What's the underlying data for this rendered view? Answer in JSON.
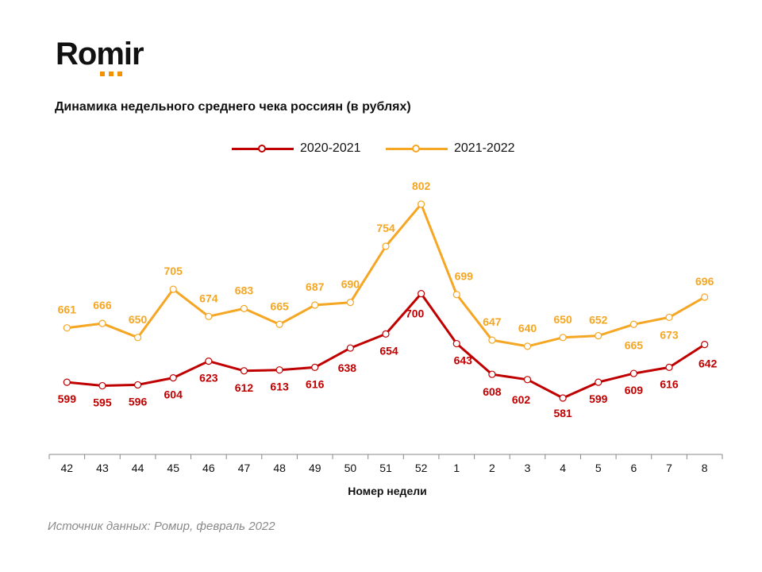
{
  "brand": {
    "name": "Romir",
    "accent_color": "#f39200"
  },
  "source_note": "Источник данных: Ромир, февраль 2022",
  "chart_data": {
    "type": "line",
    "title": "Динамика недельного среднего чека россиян (в рублях)",
    "xlabel": "Номер недели",
    "ylabel": "",
    "categories": [
      "42",
      "43",
      "44",
      "45",
      "46",
      "47",
      "48",
      "49",
      "50",
      "51",
      "52",
      "1",
      "2",
      "3",
      "4",
      "5",
      "6",
      "7",
      "8"
    ],
    "series": [
      {
        "name": "2020-2021",
        "color": "#c00000",
        "values": [
          599,
          595,
          596,
          604,
          623,
          612,
          613,
          616,
          638,
          654,
          700,
          643,
          608,
          602,
          581,
          599,
          609,
          616,
          642
        ],
        "label_position": "below"
      },
      {
        "name": "2021-2022",
        "color": "#f5a623",
        "values": [
          661,
          666,
          650,
          705,
          674,
          683,
          665,
          687,
          690,
          754,
          802,
          699,
          647,
          640,
          650,
          652,
          665,
          673,
          696
        ],
        "label_position": "above"
      }
    ],
    "legend": "top-center",
    "grid": false,
    "ylim": [
      560,
      820
    ]
  }
}
